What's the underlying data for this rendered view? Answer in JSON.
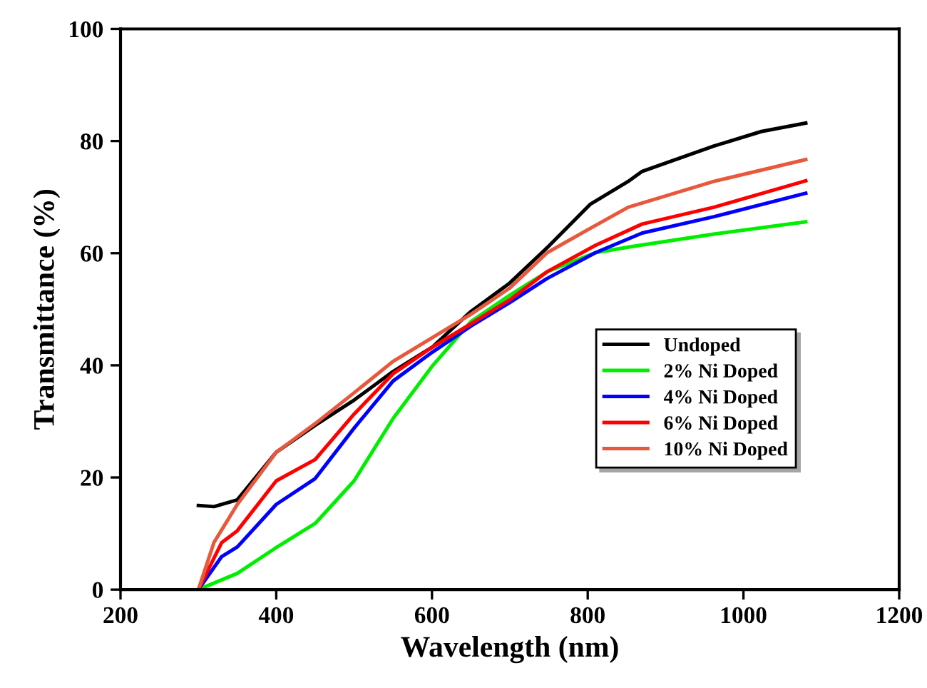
{
  "chart_data": {
    "type": "line",
    "xlabel": "Wavelength (nm)",
    "ylabel": "Transmittance (%)",
    "xlim": [
      200,
      1200
    ],
    "ylim": [
      0,
      100
    ],
    "xticks": [
      200,
      400,
      600,
      800,
      1000,
      1200
    ],
    "yticks": [
      0,
      20,
      40,
      60,
      80,
      100
    ],
    "grid": false,
    "legend": "lower right",
    "marker": "none",
    "line_style": "solid",
    "series": [
      {
        "name": "Undoped",
        "color": "#000000",
        "x": [
          300,
          320,
          350,
          400,
          450,
          500,
          550,
          600,
          650,
          700,
          748,
          803,
          852,
          870,
          962,
          1023,
          1080
        ],
        "values": [
          15.0,
          14.8,
          16,
          24.5,
          29.3,
          33.8,
          38.9,
          43.2,
          49.6,
          54.7,
          61,
          68.7,
          72.8,
          74.6,
          79.1,
          81.7,
          83.2
        ]
      },
      {
        "name": "2% Ni Doped",
        "color": "#00ee00",
        "x": [
          300,
          350,
          400,
          450,
          500,
          550,
          600,
          650,
          700,
          748,
          810,
          858,
          962,
          1080
        ],
        "values": [
          0,
          2.9,
          7.5,
          11.8,
          19.4,
          30.5,
          39.8,
          47.8,
          52.5,
          56.7,
          60.1,
          61.2,
          63.4,
          65.6
        ]
      },
      {
        "name": "4% Ni Doped",
        "color": "#0000ff",
        "x": [
          300,
          330,
          350,
          400,
          450,
          500,
          550,
          600,
          650,
          700,
          748,
          810,
          870,
          962,
          1080
        ],
        "values": [
          0,
          5.9,
          7.6,
          15.2,
          19.8,
          28.8,
          37.2,
          42.3,
          47,
          51.2,
          55.5,
          60.1,
          63.6,
          66.5,
          70.7
        ]
      },
      {
        "name": "6% Ni Doped",
        "color": "#ff0000",
        "x": [
          300,
          330,
          350,
          400,
          450,
          500,
          550,
          600,
          650,
          700,
          748,
          810,
          870,
          962,
          1080
        ],
        "values": [
          0,
          8.4,
          10.5,
          19.4,
          23.2,
          31.3,
          38.5,
          43.2,
          47.4,
          51.7,
          56.7,
          61.4,
          65.2,
          68.2,
          72.9
        ]
      },
      {
        "name": "10% Ni Doped",
        "color": "#e8583c",
        "x": [
          300,
          320,
          350,
          400,
          450,
          500,
          550,
          600,
          650,
          700,
          748,
          803,
          852,
          962,
          1080
        ],
        "values": [
          0,
          8.4,
          15.2,
          24.5,
          29.6,
          35.1,
          40.7,
          44.9,
          49.1,
          53.8,
          60.1,
          64.4,
          68.2,
          72.8,
          76.7
        ]
      }
    ]
  }
}
